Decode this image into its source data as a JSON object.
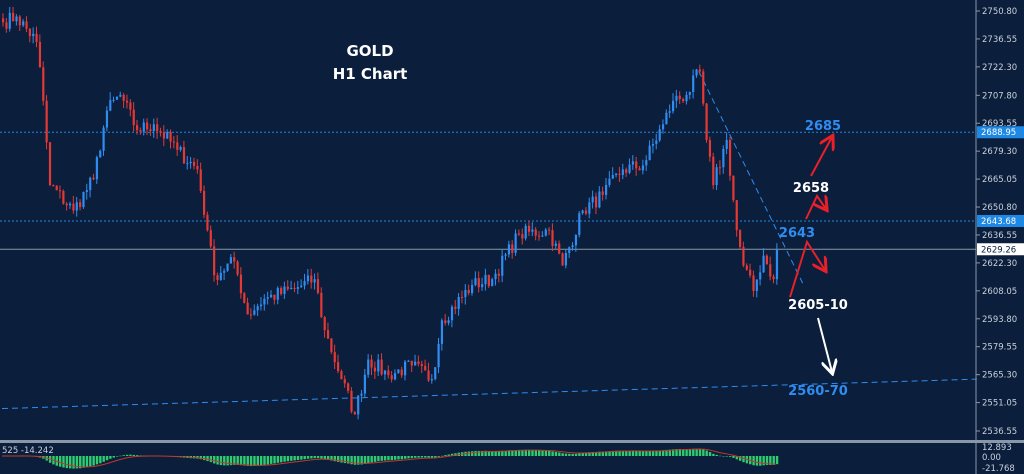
{
  "chart_data": {
    "type": "candlestick",
    "title": "GOLD",
    "subtitle": "H1 Chart",
    "symbol": "GOLD",
    "timeframe": "H1",
    "ylim": [
      2529,
      2757
    ],
    "y_ticks": [
      "2750.80",
      "2736.55",
      "2722.30",
      "2707.80",
      "2693.55",
      "2679.30",
      "2665.05",
      "2650.80",
      "2636.55",
      "2622.30",
      "2608.05",
      "2593.80",
      "2579.55",
      "2565.30",
      "2551.05",
      "2536.55"
    ],
    "price_markers": [
      {
        "label": "2688.95",
        "value": 2688.95,
        "style": "dotted",
        "color": "#1e88e5"
      },
      {
        "label": "2643.68",
        "value": 2643.68,
        "style": "dotted",
        "color": "#1e88e5"
      },
      {
        "label": "2629.26",
        "value": 2629.26,
        "style": "solid",
        "color": "#ffffff"
      }
    ],
    "price_path": [
      {
        "bar": 0,
        "price": 2745
      },
      {
        "bar": 4,
        "price": 2748
      },
      {
        "bar": 10,
        "price": 2735
      },
      {
        "bar": 12,
        "price": 2705
      },
      {
        "bar": 14,
        "price": 2662
      },
      {
        "bar": 21,
        "price": 2649
      },
      {
        "bar": 27,
        "price": 2665
      },
      {
        "bar": 31,
        "price": 2700
      },
      {
        "bar": 35,
        "price": 2708
      },
      {
        "bar": 40,
        "price": 2690
      },
      {
        "bar": 45,
        "price": 2693
      },
      {
        "bar": 52,
        "price": 2680
      },
      {
        "bar": 58,
        "price": 2670
      },
      {
        "bar": 61,
        "price": 2639
      },
      {
        "bar": 63,
        "price": 2616
      },
      {
        "bar": 69,
        "price": 2623
      },
      {
        "bar": 73,
        "price": 2596
      },
      {
        "bar": 78,
        "price": 2604
      },
      {
        "bar": 87,
        "price": 2609
      },
      {
        "bar": 93,
        "price": 2614
      },
      {
        "bar": 96,
        "price": 2588
      },
      {
        "bar": 101,
        "price": 2563
      },
      {
        "bar": 105,
        "price": 2545
      },
      {
        "bar": 109,
        "price": 2573
      },
      {
        "bar": 115,
        "price": 2565
      },
      {
        "bar": 122,
        "price": 2570
      },
      {
        "bar": 128,
        "price": 2563
      },
      {
        "bar": 131,
        "price": 2593
      },
      {
        "bar": 140,
        "price": 2611
      },
      {
        "bar": 146,
        "price": 2614
      },
      {
        "bar": 154,
        "price": 2637
      },
      {
        "bar": 163,
        "price": 2639
      },
      {
        "bar": 167,
        "price": 2621
      },
      {
        "bar": 173,
        "price": 2649
      },
      {
        "bar": 179,
        "price": 2657
      },
      {
        "bar": 185,
        "price": 2670
      },
      {
        "bar": 191,
        "price": 2672
      },
      {
        "bar": 197,
        "price": 2693
      },
      {
        "bar": 200,
        "price": 2705
      },
      {
        "bar": 204,
        "price": 2708
      },
      {
        "bar": 208,
        "price": 2720
      },
      {
        "bar": 210,
        "price": 2685
      },
      {
        "bar": 212,
        "price": 2662
      },
      {
        "bar": 216,
        "price": 2685
      },
      {
        "bar": 219,
        "price": 2639
      },
      {
        "bar": 221,
        "price": 2621
      },
      {
        "bar": 224,
        "price": 2608
      },
      {
        "bar": 227,
        "price": 2626
      },
      {
        "bar": 230,
        "price": 2614
      },
      {
        "bar": 231,
        "price": 2629
      }
    ],
    "annotations": [
      {
        "text": "2685",
        "color": "#2f8cf0"
      },
      {
        "text": "2658",
        "color": "#ffffff"
      },
      {
        "text": "2643",
        "color": "#2f8cf0"
      },
      {
        "text": "2605-10",
        "color": "#ffffff"
      },
      {
        "text": "2560-70",
        "color": "#2f8cf0"
      }
    ],
    "trendlines": [
      {
        "from": {
          "bar": 208,
          "price": 2720
        },
        "to": {
          "bar": 239,
          "price": 2612
        },
        "style": "dashed"
      },
      {
        "from": {
          "bar": 0,
          "price": 2548
        },
        "to": {
          "bar": 291,
          "price": 2563
        },
        "style": "dashed"
      }
    ],
    "indicator": {
      "label": "525 -14.242",
      "y_ticks": [
        "12.893",
        "0.00",
        "-21.768"
      ],
      "histogram_color": "#2ecc71",
      "signal_color": "#c0392b"
    },
    "colors": {
      "background": "#0b1e3b",
      "bull": "#2f8cf0",
      "bear": "#e53935",
      "arrow_red": "#e8202a",
      "arrow_white": "#ffffff"
    }
  }
}
